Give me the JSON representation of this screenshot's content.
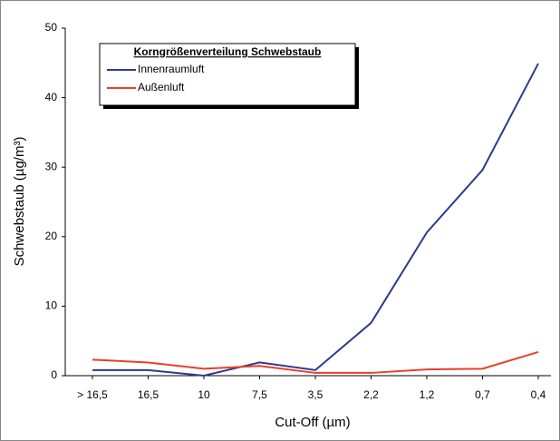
{
  "chart_data": {
    "type": "line",
    "legend_title": "Korngrößenverteilung Schwebstaub",
    "xlabel": "Cut-Off (µm)",
    "ylabel": "Schwebstaub (µg/m³)",
    "categories": [
      "> 16,5",
      "16,5",
      "10",
      "7,5",
      "3,5",
      "2,2",
      "1,2",
      "0,7",
      "0,4"
    ],
    "series": [
      {
        "name": "Innenraumluft",
        "color": "#2e3a8c",
        "values": [
          0.8,
          0.8,
          0,
          1.9,
          0.8,
          7.6,
          20.6,
          29.6,
          44.9
        ]
      },
      {
        "name": "Außenluft",
        "color": "#e8402a",
        "values": [
          2.3,
          1.9,
          1.0,
          1.4,
          0.4,
          0.4,
          0.9,
          1.0,
          3.4
        ]
      }
    ],
    "ylim": [
      0,
      50
    ],
    "yticks": [
      0,
      10,
      20,
      30,
      40,
      50
    ],
    "legend": "upper left"
  }
}
